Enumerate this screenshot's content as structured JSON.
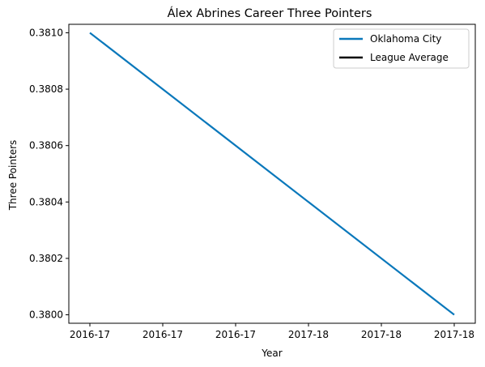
{
  "chart_data": {
    "type": "line",
    "title": "Álex Abrines Career Three Pointers",
    "xlabel": "Year",
    "ylabel": "Three Pointers",
    "x_tick_labels": [
      "2016-17",
      "2016-17",
      "2016-17",
      "2017-18",
      "2017-18",
      "2017-18"
    ],
    "ylim": [
      0.37997,
      0.38103
    ],
    "y_ticks": [
      0.38,
      0.3802,
      0.3804,
      0.3806,
      0.3808,
      0.381
    ],
    "y_tick_labels": [
      "0.3800",
      "0.3802",
      "0.3804",
      "0.3806",
      "0.3808",
      "0.3810"
    ],
    "grid": false,
    "legend_position": "top-right",
    "series": [
      {
        "name": "Oklahoma City",
        "color": "#0a78bb",
        "x": [
          "2016-17",
          "2017-18"
        ],
        "values": [
          0.381,
          0.38
        ]
      },
      {
        "name": "League Average",
        "color": "#000000",
        "x": [],
        "values": []
      }
    ]
  }
}
